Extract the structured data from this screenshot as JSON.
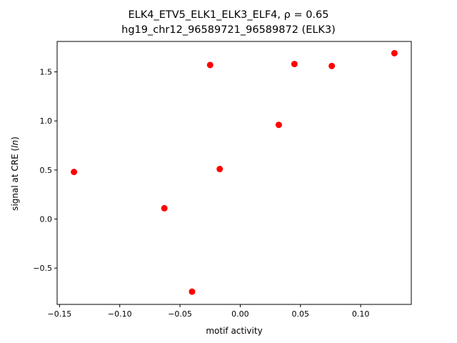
{
  "chart_data": {
    "type": "scatter",
    "title_line1": "ELK4_ETV5_ELK1_ELK3_ELF4, ρ = 0.65",
    "title_line2": "hg19_chr12_96589721_96589872 (ELK3)",
    "xlabel": "motif activity",
    "ylabel": "signal at CRE (ln)",
    "xlim": [
      -0.152,
      0.142
    ],
    "ylim": [
      -0.87,
      1.81
    ],
    "xticks": [
      -0.15,
      -0.1,
      -0.05,
      0.0,
      0.05,
      0.1
    ],
    "xtick_labels": [
      "−0.15",
      "−0.10",
      "−0.05",
      "0.00",
      "0.05",
      "0.10"
    ],
    "yticks": [
      -0.5,
      0.0,
      0.5,
      1.0,
      1.5
    ],
    "ytick_labels": [
      "−0.5",
      "0.0",
      "0.5",
      "1.0",
      "1.5"
    ],
    "marker_color": "#ff0000",
    "points": [
      {
        "x": -0.138,
        "y": 0.48
      },
      {
        "x": -0.063,
        "y": 0.11
      },
      {
        "x": -0.04,
        "y": -0.74
      },
      {
        "x": -0.025,
        "y": 1.57
      },
      {
        "x": -0.017,
        "y": 0.51
      },
      {
        "x": 0.032,
        "y": 0.96
      },
      {
        "x": 0.045,
        "y": 1.58
      },
      {
        "x": 0.076,
        "y": 1.56
      },
      {
        "x": 0.128,
        "y": 1.69
      }
    ]
  }
}
